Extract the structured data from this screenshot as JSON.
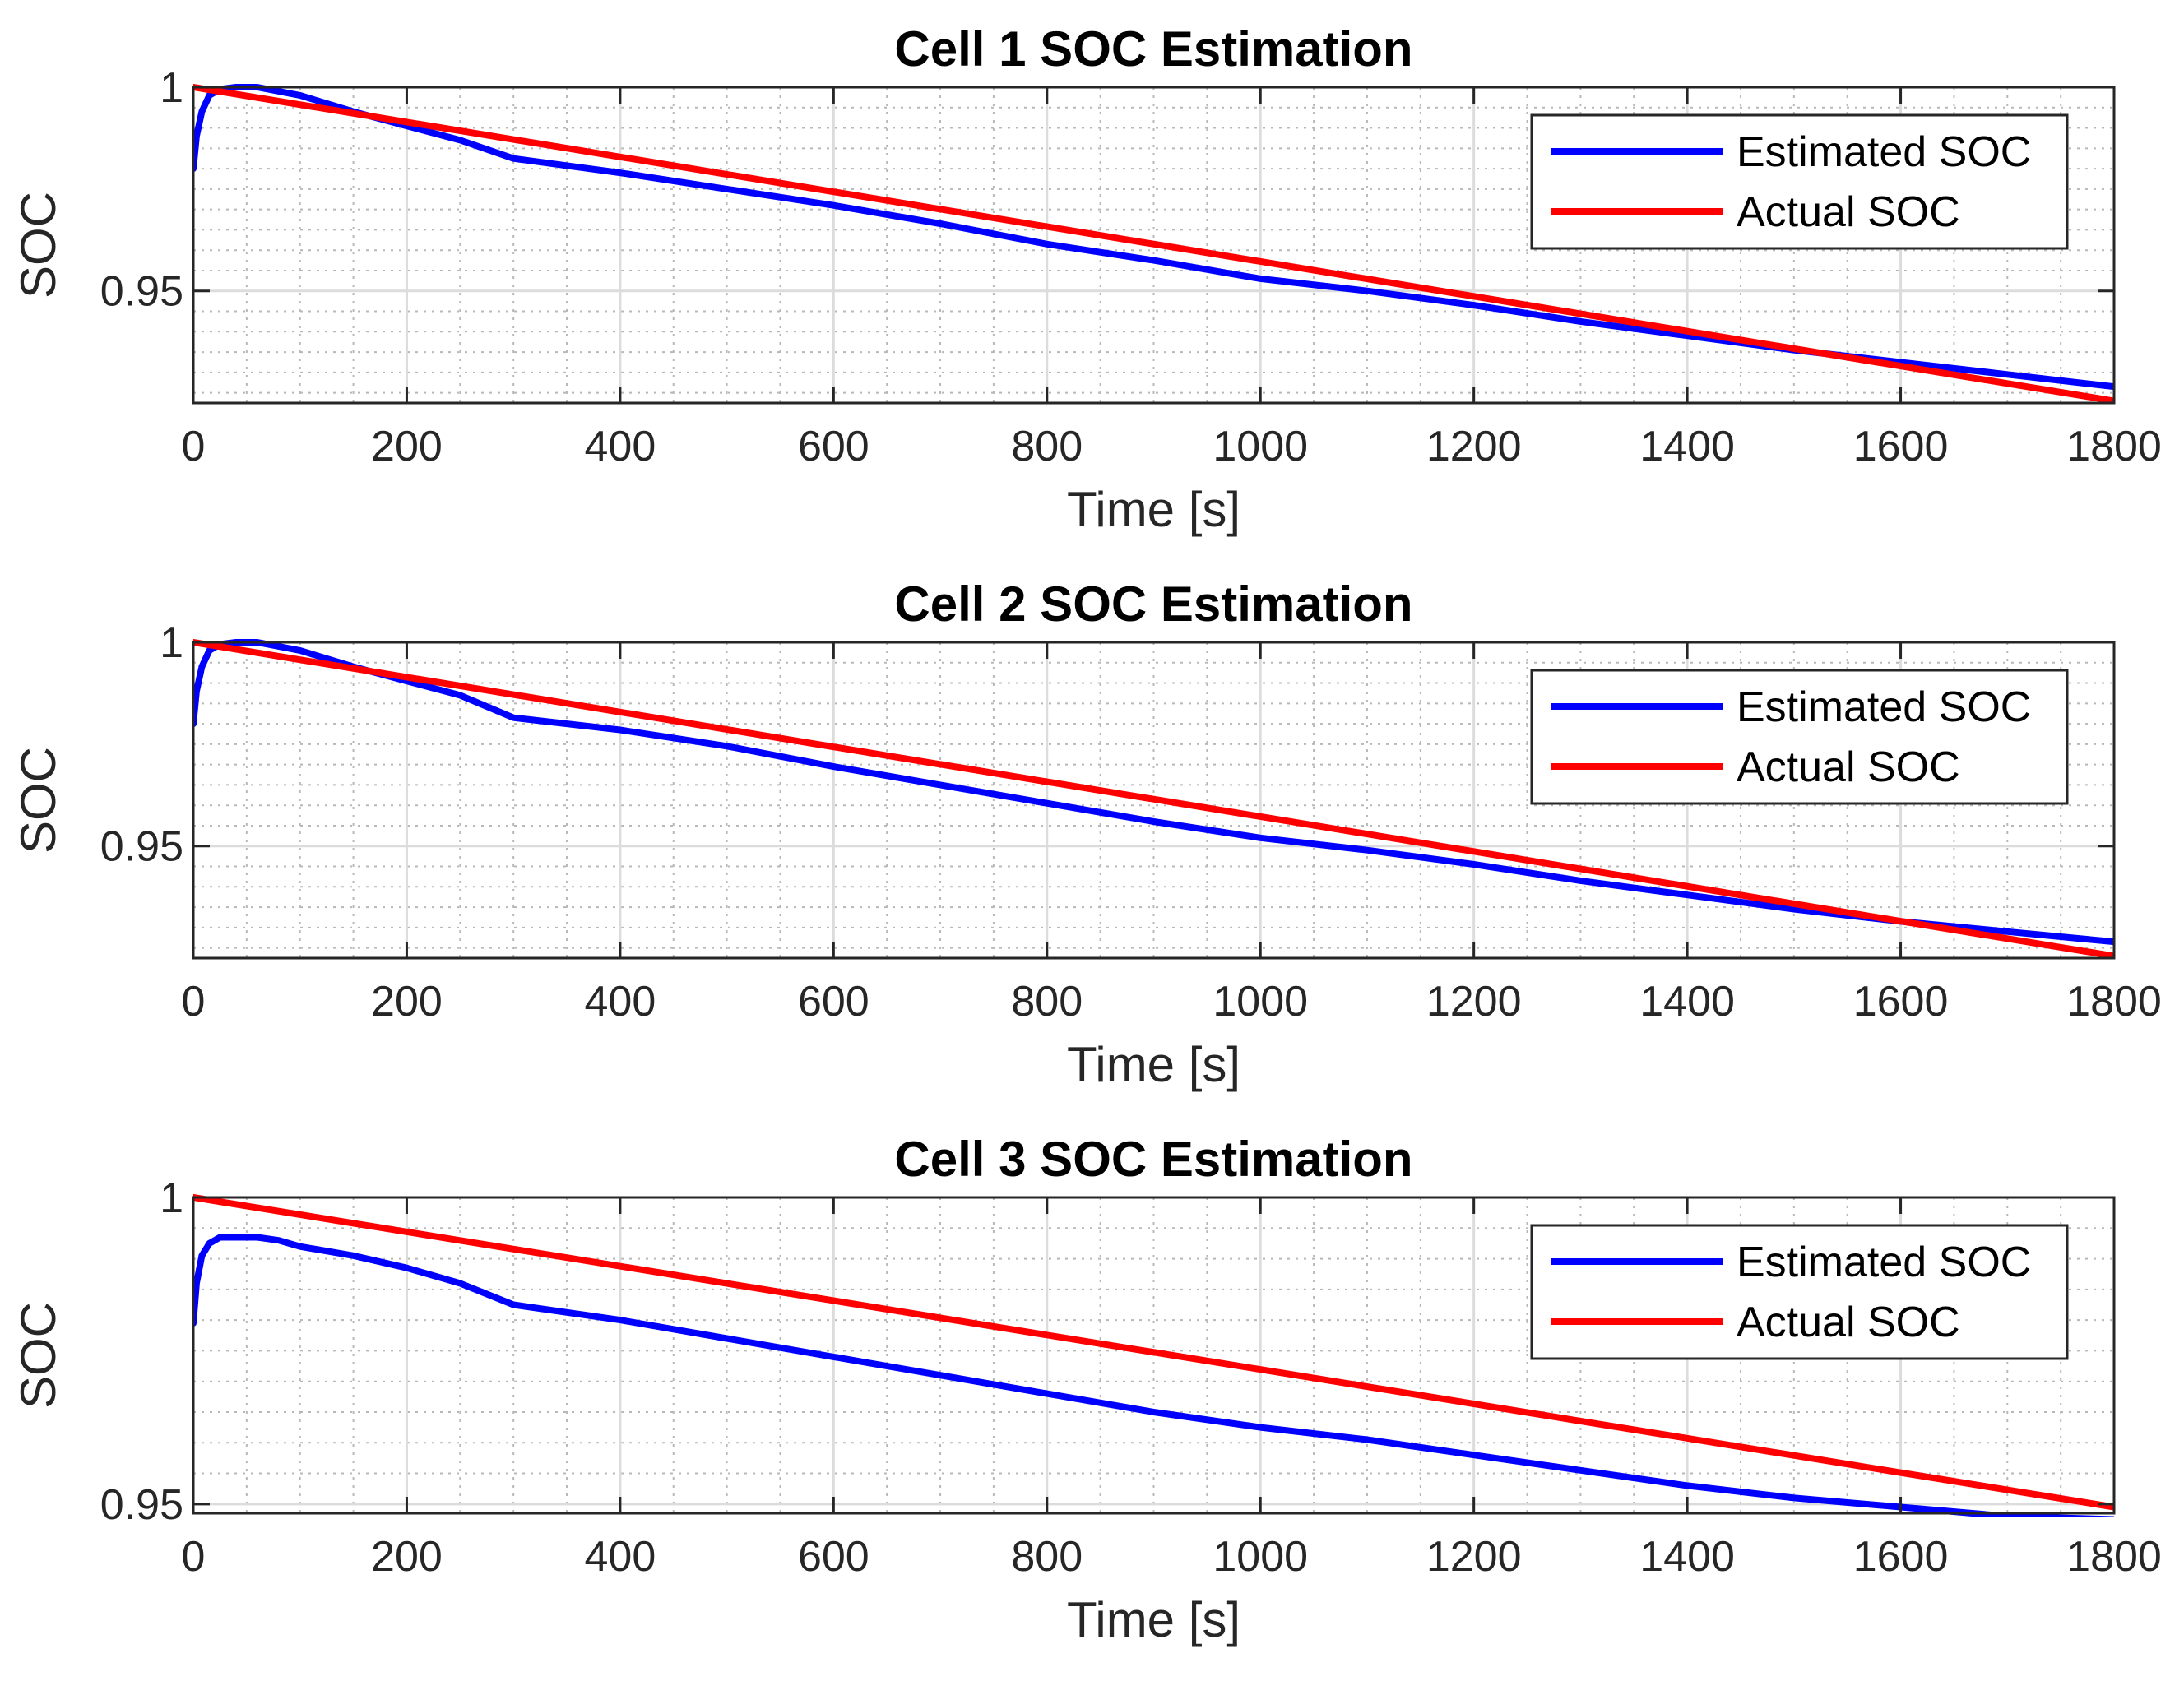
{
  "chart_data": [
    {
      "type": "line",
      "title": "Cell 1 SOC Estimation",
      "xlabel": "Time [s]",
      "ylabel": "SOC",
      "xlim": [
        0,
        1800
      ],
      "ylim": [
        0.9225,
        1.0
      ],
      "xticks": [
        0,
        200,
        400,
        600,
        800,
        1000,
        1200,
        1400,
        1600,
        1800
      ],
      "xtick_labels": [
        "0",
        "200",
        "400",
        "600",
        "800",
        "1000",
        "1200",
        "1400",
        "1600",
        "1800"
      ],
      "yticks": [
        0.95,
        1
      ],
      "ytick_labels": [
        "0.95",
        "1"
      ],
      "grid": true,
      "legend_position": "top-right",
      "series": [
        {
          "name": "Estimated SOC",
          "color": "#0000ff",
          "x": [
            0,
            3,
            8,
            15,
            25,
            40,
            60,
            80,
            100,
            150,
            200,
            250,
            300,
            400,
            500,
            600,
            700,
            800,
            900,
            1000,
            1100,
            1200,
            1300,
            1400,
            1500,
            1600,
            1700,
            1800
          ],
          "y": [
            0.98,
            0.988,
            0.994,
            0.998,
            0.9995,
            1.0,
            1.0,
            0.999,
            0.998,
            0.994,
            0.9905,
            0.987,
            0.9825,
            0.979,
            0.975,
            0.971,
            0.9665,
            0.9615,
            0.9575,
            0.953,
            0.95,
            0.9465,
            0.9425,
            0.939,
            0.9355,
            0.9325,
            0.9295,
            0.9265
          ]
        },
        {
          "name": "Actual SOC",
          "color": "#ff0000",
          "x": [
            0,
            1800
          ],
          "y": [
            1.0,
            0.923
          ]
        }
      ]
    },
    {
      "type": "line",
      "title": "Cell 2 SOC Estimation",
      "xlabel": "Time [s]",
      "ylabel": "SOC",
      "xlim": [
        0,
        1800
      ],
      "ylim": [
        0.9225,
        1.0
      ],
      "xticks": [
        0,
        200,
        400,
        600,
        800,
        1000,
        1200,
        1400,
        1600,
        1800
      ],
      "xtick_labels": [
        "0",
        "200",
        "400",
        "600",
        "800",
        "1000",
        "1200",
        "1400",
        "1600",
        "1800"
      ],
      "yticks": [
        0.95,
        1
      ],
      "ytick_labels": [
        "0.95",
        "1"
      ],
      "grid": true,
      "legend_position": "top-right",
      "series": [
        {
          "name": "Estimated SOC",
          "color": "#0000ff",
          "x": [
            0,
            3,
            8,
            15,
            25,
            40,
            60,
            80,
            100,
            150,
            200,
            250,
            300,
            400,
            500,
            600,
            700,
            800,
            900,
            1000,
            1100,
            1200,
            1300,
            1400,
            1500,
            1600,
            1700,
            1800
          ],
          "y": [
            0.98,
            0.988,
            0.994,
            0.998,
            0.9995,
            1.0,
            1.0,
            0.999,
            0.998,
            0.994,
            0.9905,
            0.987,
            0.9815,
            0.9785,
            0.9745,
            0.9695,
            0.965,
            0.9605,
            0.956,
            0.952,
            0.949,
            0.9455,
            0.9415,
            0.938,
            0.9345,
            0.9315,
            0.929,
            0.9265
          ]
        },
        {
          "name": "Actual SOC",
          "color": "#ff0000",
          "x": [
            0,
            1800
          ],
          "y": [
            1.0,
            0.923
          ]
        }
      ]
    },
    {
      "type": "line",
      "title": "Cell 3 SOC Estimation",
      "xlabel": "Time [s]",
      "ylabel": "SOC",
      "xlim": [
        0,
        1800
      ],
      "ylim": [
        0.9485,
        1.0
      ],
      "xticks": [
        0,
        200,
        400,
        600,
        800,
        1000,
        1200,
        1400,
        1600,
        1800
      ],
      "xtick_labels": [
        "0",
        "200",
        "400",
        "600",
        "800",
        "1000",
        "1200",
        "1400",
        "1600",
        "1800"
      ],
      "yticks": [
        0.95,
        1
      ],
      "ytick_labels": [
        "0.95",
        "1"
      ],
      "grid": true,
      "legend_position": "top-right",
      "series": [
        {
          "name": "Estimated SOC",
          "color": "#0000ff",
          "x": [
            0,
            3,
            8,
            15,
            25,
            40,
            60,
            80,
            100,
            150,
            200,
            250,
            300,
            400,
            500,
            600,
            700,
            800,
            900,
            1000,
            1100,
            1200,
            1300,
            1400,
            1500,
            1600,
            1700,
            1800
          ],
          "y": [
            0.9795,
            0.986,
            0.9905,
            0.9925,
            0.9935,
            0.9935,
            0.9935,
            0.993,
            0.992,
            0.9905,
            0.9885,
            0.986,
            0.9825,
            0.98,
            0.977,
            0.974,
            0.971,
            0.968,
            0.965,
            0.9625,
            0.9605,
            0.958,
            0.9555,
            0.953,
            0.951,
            0.9495,
            0.948,
            0.9475
          ]
        },
        {
          "name": "Actual SOC",
          "color": "#ff0000",
          "x": [
            0,
            1800
          ],
          "y": [
            1.0,
            0.9495
          ]
        }
      ]
    }
  ]
}
